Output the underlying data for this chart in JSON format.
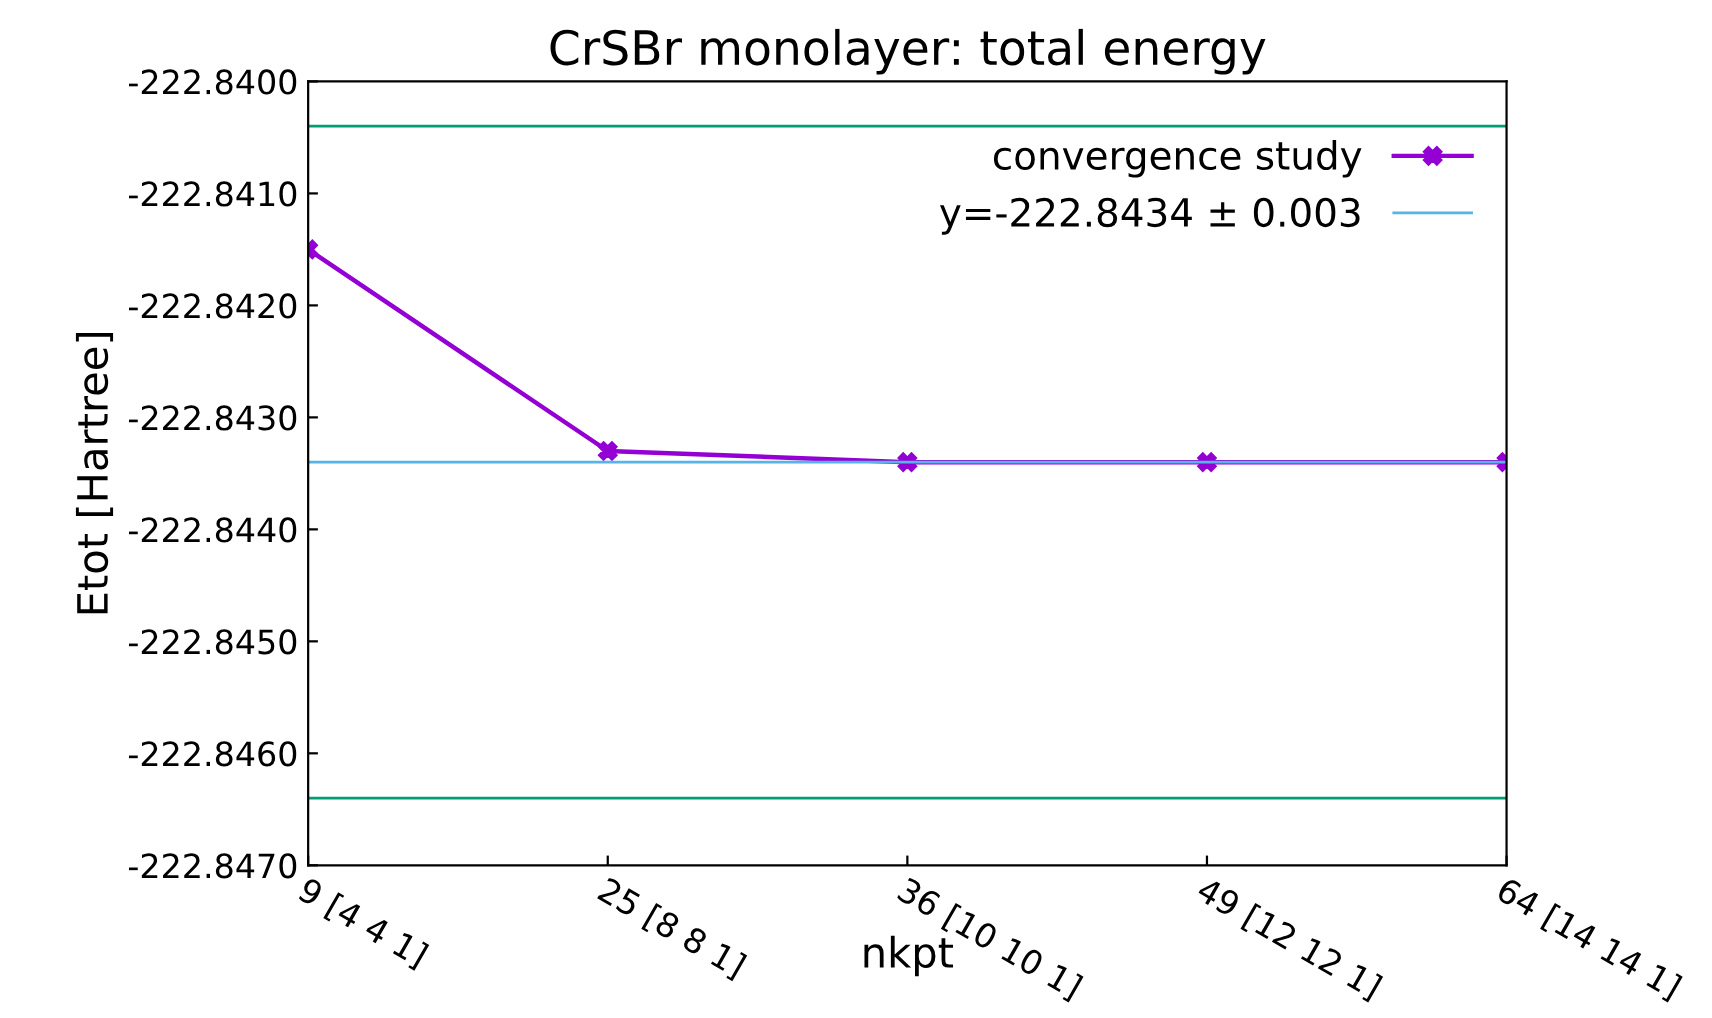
{
  "chart_data": {
    "type": "line",
    "title": "CrSBr monolayer: total energy",
    "xlabel": "nkpt",
    "ylabel": "Etot [Hartree]",
    "categories": [
      "9 [4 4 1]",
      "25 [8 8 1]",
      "36 [10 10 1]",
      "49 [12 12 1]",
      "64 [14 14 1]"
    ],
    "series": [
      {
        "name": "convergence study",
        "color": "#9400d3",
        "values": [
          -222.8415,
          -222.8433,
          -222.8434,
          -222.8434,
          -222.8434
        ]
      }
    ],
    "marker": "cross",
    "line_style": "solid",
    "legend": "top right",
    "grid": false,
    "ylim": [
      -222.847,
      -222.84
    ],
    "yticks": [
      {
        "value": -222.847,
        "label": "-222.8470"
      },
      {
        "value": -222.846,
        "label": "-222.8460"
      },
      {
        "value": -222.845,
        "label": "-222.8450"
      },
      {
        "value": -222.844,
        "label": "-222.8440"
      },
      {
        "value": -222.843,
        "label": "-222.8430"
      },
      {
        "value": -222.842,
        "label": "-222.8420"
      },
      {
        "value": -222.841,
        "label": "-222.8410"
      },
      {
        "value": -222.84,
        "label": "-222.8400"
      }
    ],
    "ref_lines": [
      {
        "axis": "y",
        "value": -222.8434,
        "label": "y=-222.8434 ± 0.003",
        "color": "#56b4e9"
      },
      {
        "axis": "y",
        "value": -222.8404,
        "color": "#009e73"
      },
      {
        "axis": "y",
        "value": -222.8464,
        "color": "#009e73"
      }
    ]
  }
}
